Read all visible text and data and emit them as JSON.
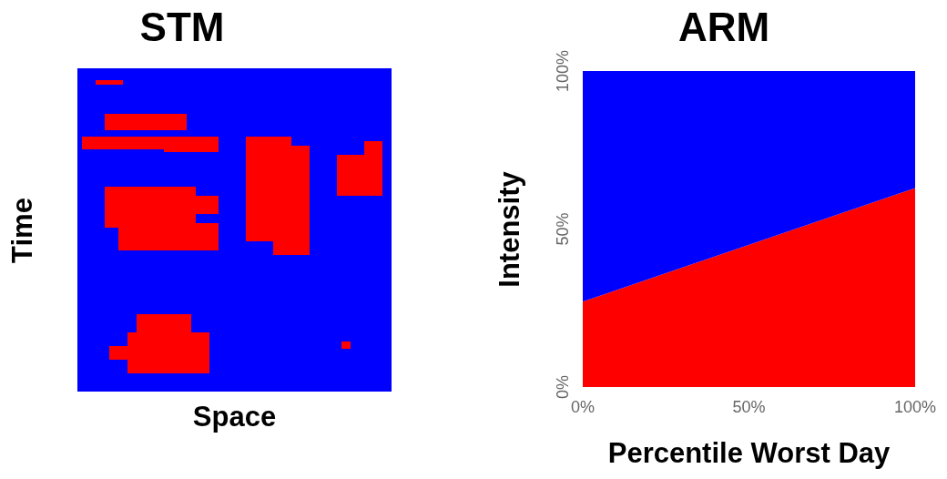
{
  "chart_data": [
    {
      "type": "other",
      "title": "STM",
      "xlabel": "Space",
      "ylabel": "Time"
    },
    {
      "type": "area",
      "stacked": true,
      "title": "ARM",
      "xlabel": "Percentile Worst Day",
      "ylabel": "Intensity",
      "x": [
        0,
        100
      ],
      "series": [
        {
          "color": "#fe0000",
          "values": [
            27,
            63
          ]
        },
        {
          "color": "#0000fe",
          "values": [
            73,
            37
          ]
        }
      ],
      "xlim": [
        0,
        100
      ],
      "xticks": [
        {
          "value": 0,
          "label": "0%"
        },
        {
          "value": 50,
          "label": "50%"
        },
        {
          "value": 100,
          "label": "100%"
        }
      ],
      "ylim": [
        0,
        100
      ],
      "yticks": [
        {
          "value": 0,
          "label": "0%"
        },
        {
          "value": 50,
          "label": "50%"
        },
        {
          "value": 100,
          "label": "100%"
        }
      ]
    }
  ]
}
